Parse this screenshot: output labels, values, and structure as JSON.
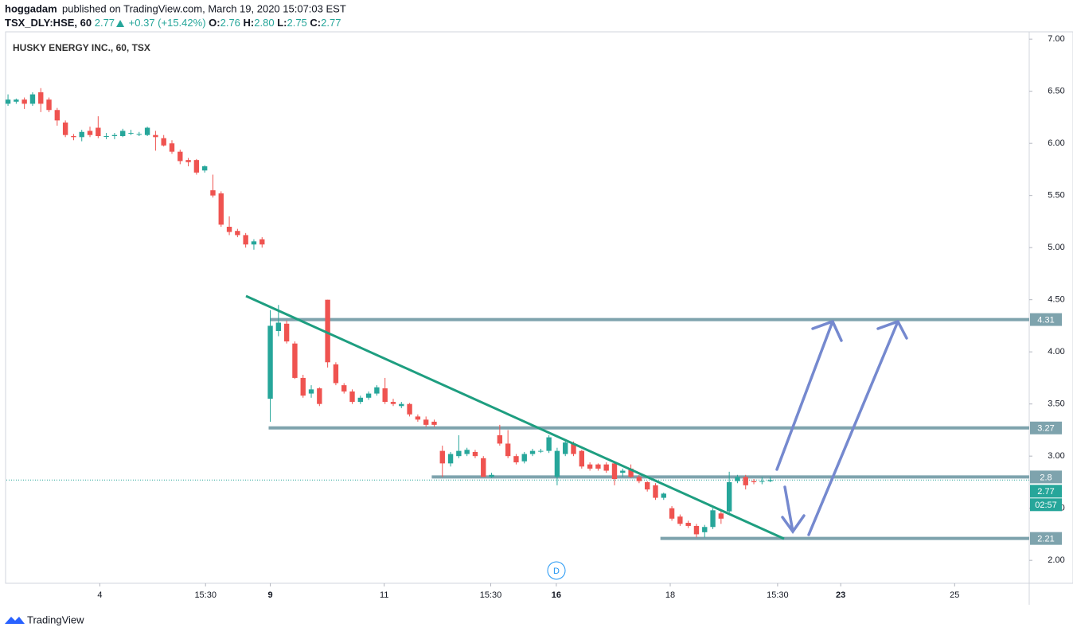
{
  "header": {
    "author": "hoggadam",
    "published": "published on TradingView.com, March 19, 2020 15:07:03 EST",
    "symbol": "TSX_DLY:HSE, 60",
    "last": "2.77",
    "change": "+0.37 (+15.42%)",
    "open_label": "O:",
    "open": "2.76",
    "high_label": "H:",
    "high": "2.80",
    "low_label": "L:",
    "low": "2.75",
    "close_label": "C:",
    "close": "2.77"
  },
  "chart_data": {
    "type": "candlestick",
    "title": "HUSKY ENERGY INC., 60, TSX",
    "up_color": "#26a69a",
    "down_color": "#ef5350",
    "x": [
      0,
      1,
      2,
      3,
      4,
      5,
      6,
      7,
      8,
      9,
      10,
      11,
      12,
      13,
      14,
      15,
      16,
      17,
      18,
      19,
      20,
      21,
      22,
      23,
      24,
      25,
      26,
      27,
      28,
      29,
      30,
      31,
      32,
      33,
      34,
      35,
      36,
      37,
      38,
      39,
      40,
      41,
      42,
      43,
      44,
      45,
      46,
      47,
      48,
      49,
      50,
      51,
      52,
      53,
      54,
      55,
      56,
      57,
      58,
      59,
      60,
      61,
      62,
      63,
      64,
      65,
      66,
      67,
      68,
      69,
      70,
      71,
      72,
      73,
      74,
      75,
      76,
      77,
      78,
      79,
      80,
      81,
      82,
      83,
      84,
      85,
      86,
      87,
      88,
      89,
      90,
      91,
      92,
      93
    ],
    "candles": [
      [
        6.38,
        6.47,
        6.36,
        6.42
      ],
      [
        6.4,
        6.43,
        6.38,
        6.42
      ],
      [
        6.42,
        6.44,
        6.33,
        6.38
      ],
      [
        6.38,
        6.49,
        6.36,
        6.47
      ],
      [
        6.49,
        6.53,
        6.3,
        6.38
      ],
      [
        6.42,
        6.44,
        6.3,
        6.32
      ],
      [
        6.32,
        6.34,
        6.17,
        6.22
      ],
      [
        6.2,
        6.22,
        6.06,
        6.08
      ],
      [
        6.07,
        6.09,
        6.03,
        6.06
      ],
      [
        6.06,
        6.13,
        6.02,
        6.11
      ],
      [
        6.12,
        6.16,
        6.06,
        6.08
      ],
      [
        6.15,
        6.26,
        6.05,
        6.07
      ],
      [
        6.07,
        6.1,
        6.04,
        6.07
      ],
      [
        6.07,
        6.1,
        6.04,
        6.08
      ],
      [
        6.07,
        6.14,
        6.06,
        6.12
      ],
      [
        6.1,
        6.13,
        6.08,
        6.1
      ],
      [
        6.09,
        6.11,
        6.07,
        6.09
      ],
      [
        6.08,
        6.16,
        6.07,
        6.15
      ],
      [
        6.08,
        6.12,
        5.93,
        6.06
      ],
      [
        6.05,
        6.08,
        5.97,
        5.98
      ],
      [
        6.0,
        6.03,
        5.9,
        5.92
      ],
      [
        5.92,
        5.94,
        5.8,
        5.83
      ],
      [
        5.84,
        5.86,
        5.78,
        5.82
      ],
      [
        5.84,
        5.85,
        5.7,
        5.72
      ],
      [
        5.74,
        5.79,
        5.72,
        5.78
      ],
      [
        5.55,
        5.7,
        5.48,
        5.5
      ],
      [
        5.52,
        5.54,
        5.2,
        5.22
      ],
      [
        5.2,
        5.3,
        5.12,
        5.15
      ],
      [
        5.16,
        5.18,
        5.1,
        5.12
      ],
      [
        5.12,
        5.14,
        5.0,
        5.03
      ],
      [
        5.03,
        5.08,
        4.98,
        5.06
      ],
      [
        5.08,
        5.1,
        5.0,
        5.03
      ],
      [
        3.55,
        4.4,
        3.33,
        4.25
      ],
      [
        4.2,
        4.45,
        4.15,
        4.28
      ],
      [
        4.27,
        4.3,
        4.08,
        4.1
      ],
      [
        4.08,
        4.1,
        3.74,
        3.75
      ],
      [
        3.75,
        3.78,
        3.56,
        3.58
      ],
      [
        3.6,
        3.68,
        3.56,
        3.64
      ],
      [
        3.65,
        3.66,
        3.48,
        3.5
      ],
      [
        4.5,
        4.5,
        3.85,
        3.9
      ],
      [
        3.88,
        3.9,
        3.68,
        3.7
      ],
      [
        3.68,
        3.7,
        3.6,
        3.62
      ],
      [
        3.62,
        3.64,
        3.5,
        3.52
      ],
      [
        3.52,
        3.58,
        3.5,
        3.56
      ],
      [
        3.56,
        3.62,
        3.54,
        3.6
      ],
      [
        3.6,
        3.68,
        3.58,
        3.66
      ],
      [
        3.65,
        3.75,
        3.5,
        3.52
      ],
      [
        3.52,
        3.55,
        3.48,
        3.5
      ],
      [
        3.48,
        3.52,
        3.46,
        3.5
      ],
      [
        3.5,
        3.51,
        3.38,
        3.4
      ],
      [
        3.38,
        3.4,
        3.33,
        3.35
      ],
      [
        3.35,
        3.38,
        3.28,
        3.3
      ],
      [
        3.33,
        3.35,
        3.28,
        3.3
      ],
      [
        3.05,
        3.1,
        2.8,
        2.93
      ],
      [
        2.93,
        3.04,
        2.9,
        3.02
      ],
      [
        3.0,
        3.2,
        2.98,
        3.05
      ],
      [
        3.02,
        3.08,
        3.0,
        3.06
      ],
      [
        3.04,
        3.06,
        2.98,
        3.0
      ],
      [
        2.98,
        3.0,
        2.8,
        2.8
      ],
      [
        2.8,
        2.84,
        2.79,
        2.82
      ],
      [
        3.2,
        3.3,
        3.1,
        3.12
      ],
      [
        3.12,
        3.25,
        2.98,
        3.0
      ],
      [
        3.0,
        3.02,
        2.92,
        2.94
      ],
      [
        2.95,
        3.04,
        2.93,
        3.02
      ],
      [
        3.02,
        3.07,
        3.0,
        3.05
      ],
      [
        3.05,
        3.07,
        3.03,
        3.05
      ],
      [
        3.05,
        3.2,
        3.03,
        3.18
      ],
      [
        2.8,
        3.08,
        2.72,
        3.05
      ],
      [
        3.02,
        3.15,
        3.0,
        3.13
      ],
      [
        3.12,
        3.14,
        3.0,
        3.02
      ],
      [
        3.05,
        3.06,
        2.88,
        2.9
      ],
      [
        2.92,
        2.94,
        2.86,
        2.88
      ],
      [
        2.92,
        2.93,
        2.86,
        2.88
      ],
      [
        2.92,
        2.94,
        2.84,
        2.86
      ],
      [
        2.93,
        2.94,
        2.72,
        2.78
      ],
      [
        2.84,
        2.88,
        2.8,
        2.86
      ],
      [
        2.88,
        2.92,
        2.79,
        2.8
      ],
      [
        2.8,
        2.82,
        2.74,
        2.76
      ],
      [
        2.75,
        2.76,
        2.66,
        2.68
      ],
      [
        2.72,
        2.74,
        2.58,
        2.6
      ],
      [
        2.6,
        2.65,
        2.58,
        2.64
      ],
      [
        2.5,
        2.52,
        2.38,
        2.4
      ],
      [
        2.42,
        2.44,
        2.33,
        2.35
      ],
      [
        2.36,
        2.38,
        2.31,
        2.33
      ],
      [
        2.33,
        2.35,
        2.22,
        2.25
      ],
      [
        2.27,
        2.34,
        2.22,
        2.32
      ],
      [
        2.32,
        2.5,
        2.3,
        2.48
      ],
      [
        2.45,
        2.48,
        2.35,
        2.4
      ],
      [
        2.47,
        2.85,
        2.45,
        2.75
      ],
      [
        2.76,
        2.82,
        2.74,
        2.8
      ],
      [
        2.8,
        2.82,
        2.68,
        2.72
      ],
      [
        2.76,
        2.78,
        2.73,
        2.75
      ],
      [
        2.76,
        2.8,
        2.73,
        2.76
      ],
      [
        2.76,
        2.8,
        2.75,
        2.77
      ]
    ],
    "xlim": [
      -0.2,
      124.6
    ],
    "xticks": [
      {
        "value": 11.2,
        "label": "4"
      },
      {
        "value": 24.1,
        "label": "15:30"
      },
      {
        "value": 32,
        "label": "9"
      },
      {
        "value": 45.9,
        "label": "11"
      },
      {
        "value": 58.9,
        "label": "15:30"
      },
      {
        "value": 66.9,
        "label": "16"
      },
      {
        "value": 80.8,
        "label": "18"
      },
      {
        "value": 93.9,
        "label": "15:30"
      },
      {
        "value": 101.6,
        "label": "23"
      },
      {
        "value": 115.5,
        "label": "25"
      }
    ],
    "ylim": [
      1.78,
      7.07
    ],
    "yticks": [
      {
        "value": 2,
        "label": "2.00"
      },
      {
        "value": 2.5,
        "label": "2.50"
      },
      {
        "value": 3,
        "label": "3.00"
      },
      {
        "value": 3.5,
        "label": "3.50"
      },
      {
        "value": 4,
        "label": "4.00"
      },
      {
        "value": 4.5,
        "label": "4.50"
      },
      {
        "value": 5,
        "label": "5.00"
      },
      {
        "value": 5.5,
        "label": "5.50"
      },
      {
        "value": 6,
        "label": "6.00"
      },
      {
        "value": 6.5,
        "label": "6.50"
      },
      {
        "value": 7,
        "label": "7.00"
      }
    ],
    "levels": [
      {
        "value": 4.31,
        "x_start": 32
      },
      {
        "value": 3.27,
        "x_start": 31.8
      },
      {
        "value": 2.8,
        "x_start": 51.7
      },
      {
        "value": 2.21,
        "x_start": 79.6
      }
    ],
    "level_color": "#7ea3ad",
    "current_price": 2.77,
    "countdown": "02:57",
    "event_marker": "D",
    "footer": "TradingView"
  }
}
